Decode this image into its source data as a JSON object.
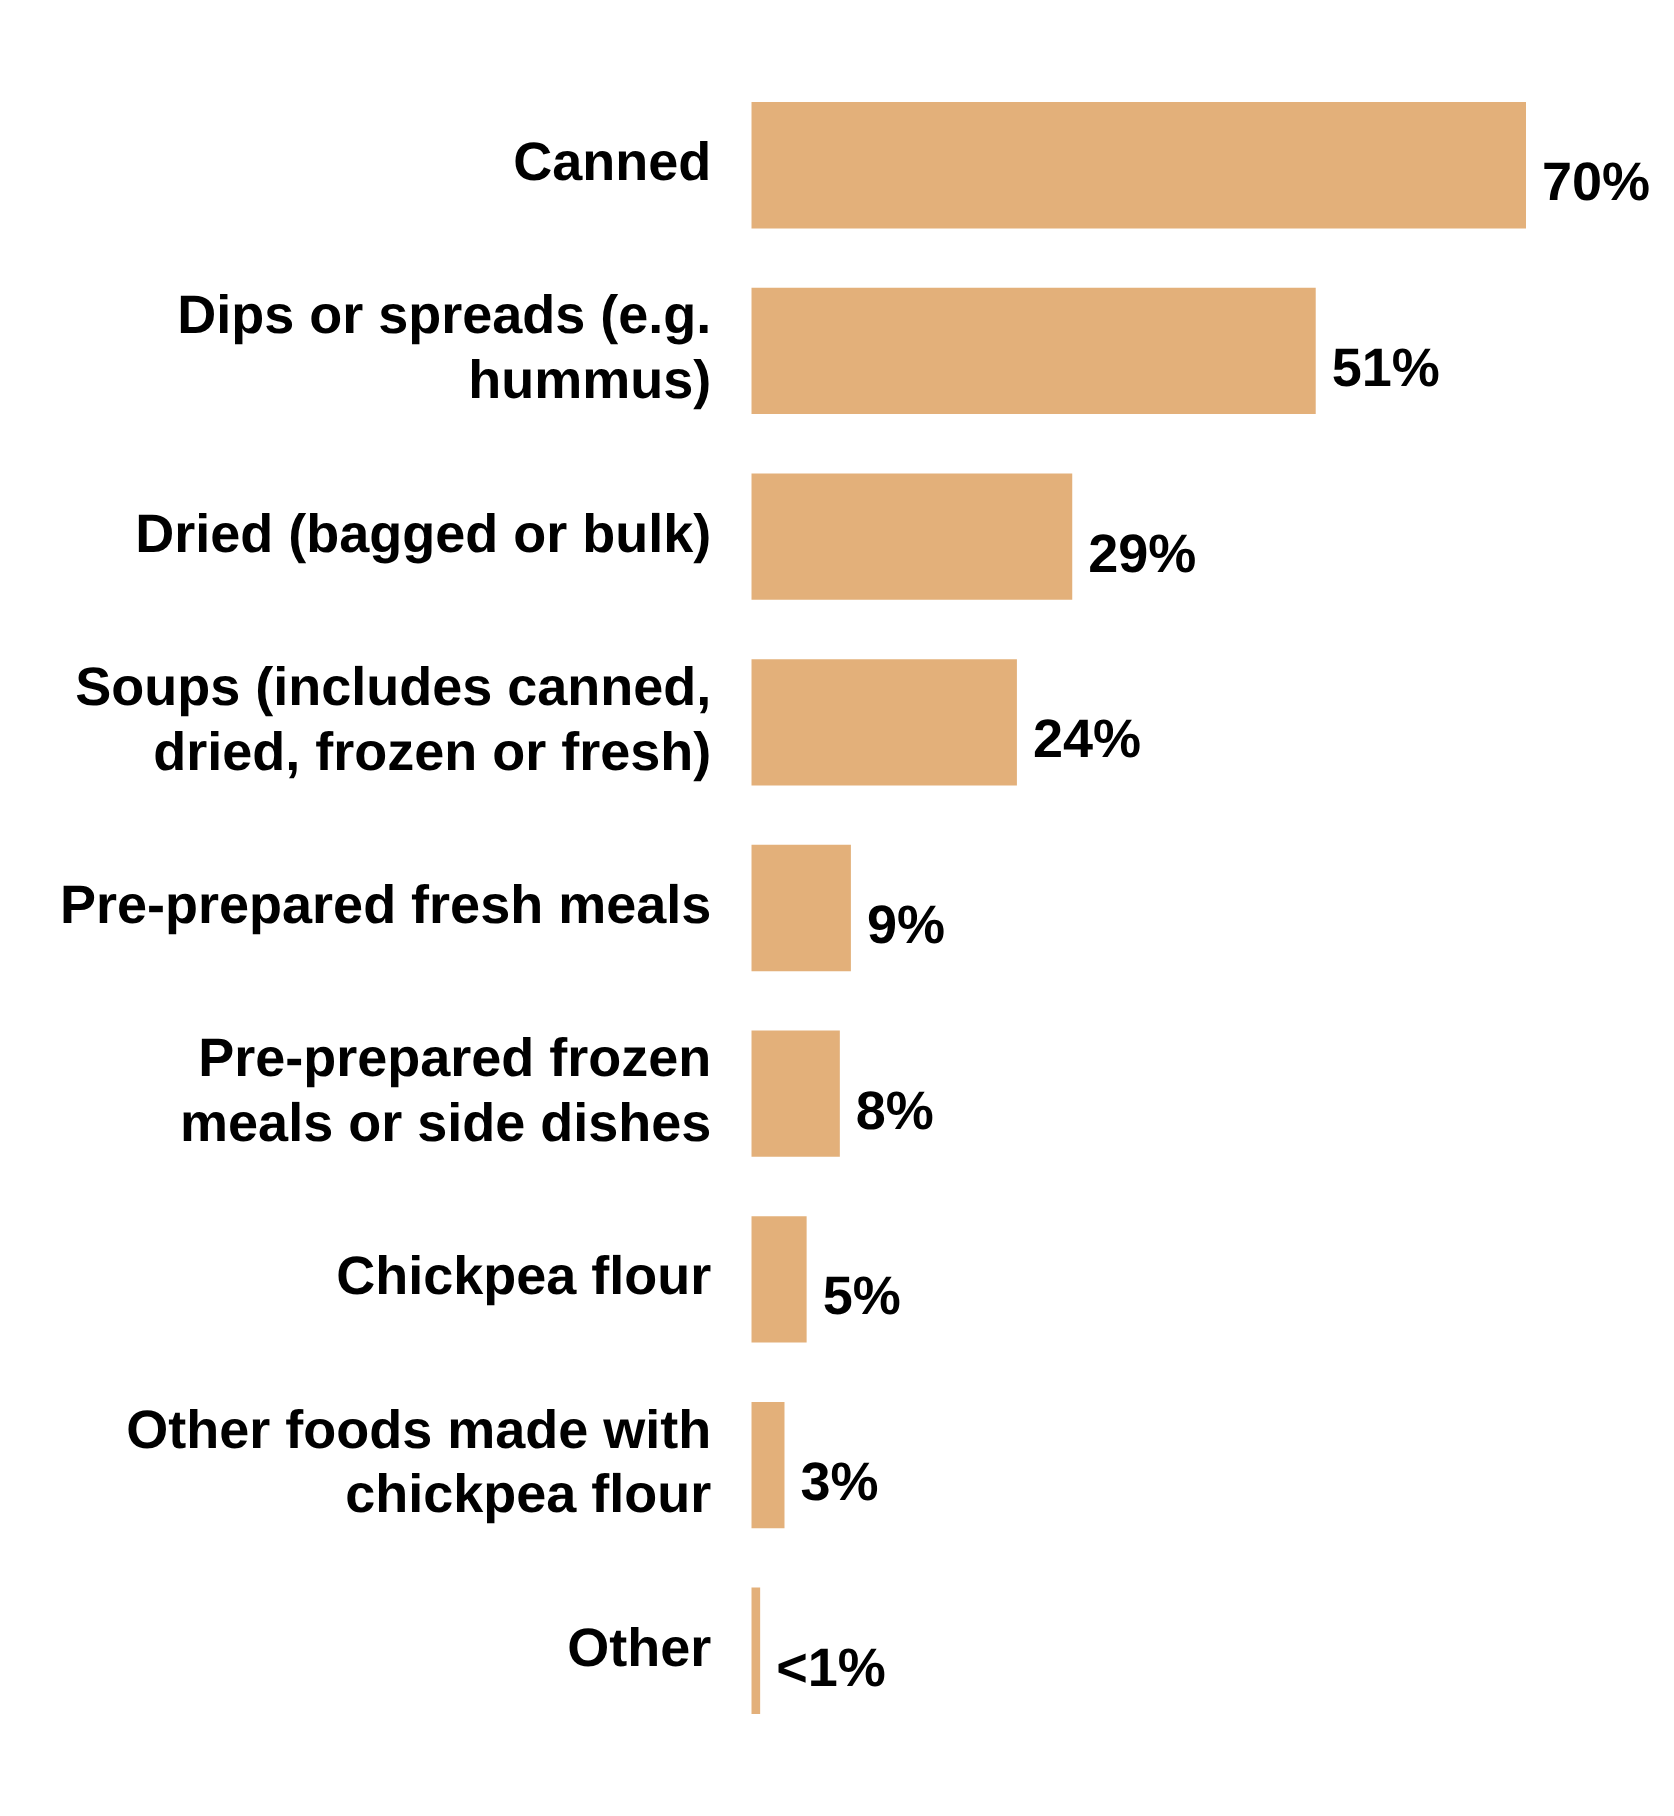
{
  "chart_data": {
    "type": "bar",
    "orientation": "horizontal",
    "categories": [
      "Canned",
      "Dips or spreads (e.g. hummus)",
      "Dried (bagged or bulk)",
      "Soups (includes canned, dried, frozen or fresh)",
      "Pre-prepared fresh meals",
      "Pre-prepared frozen meals or side dishes",
      "Chickpea flour",
      "Other foods made with chickpea flour",
      "Other"
    ],
    "values": [
      70,
      51,
      29,
      24,
      9,
      8,
      5,
      3,
      0.8
    ],
    "value_labels": [
      "70%",
      "51%",
      "29%",
      "24%",
      "9%",
      "8%",
      "5%",
      "3%",
      "<1%"
    ],
    "color": "#e3b07a",
    "legend": false,
    "tick_labels": "y"
  }
}
